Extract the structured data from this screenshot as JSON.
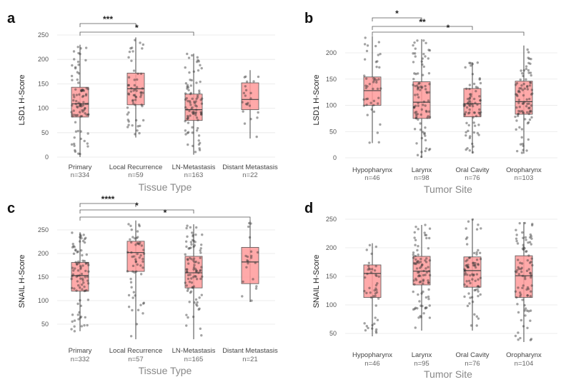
{
  "chart_data": [
    {
      "panel": "a",
      "type": "box",
      "ylabel": "LSD1 H-Score",
      "xlabel": "Tissue Type",
      "ylim": [
        0,
        255
      ],
      "yticks": [
        0,
        50,
        100,
        150,
        200,
        250
      ],
      "categories": [
        "Primary",
        "Local Recurrence",
        "LN-Metastasis",
        "Distant Metastasis"
      ],
      "n_labels": [
        "n=334",
        "n=59",
        "n=163",
        "n=22"
      ],
      "boxes": [
        {
          "whisk_low": 0,
          "q1": 82,
          "median": 109,
          "q3": 143,
          "whisk_high": 230
        },
        {
          "whisk_low": 40,
          "q1": 107,
          "median": 140,
          "q3": 172,
          "whisk_high": 245
        },
        {
          "whisk_low": 5,
          "q1": 75,
          "median": 97,
          "q3": 129,
          "whisk_high": 212
        },
        {
          "whisk_low": 38,
          "q1": 97,
          "median": 118,
          "q3": 152,
          "whisk_high": 178
        }
      ],
      "comparisons": [
        {
          "from": 0,
          "to": 1,
          "label": "***"
        },
        {
          "from": 0,
          "to": 2,
          "label": "*"
        }
      ]
    },
    {
      "panel": "b",
      "type": "box",
      "ylabel": "LSD1 H-Score",
      "xlabel": "Tumor Site",
      "ylim": [
        0,
        230
      ],
      "yticks": [
        0,
        50,
        100,
        150,
        200
      ],
      "categories": [
        "Hypopharynx",
        "Larynx",
        "Oral Cavity",
        "Oropharynx"
      ],
      "n_labels": [
        "n=46",
        "n=98",
        "n=76",
        "n=103"
      ],
      "boxes": [
        {
          "whisk_low": 28,
          "q1": 100,
          "median": 128,
          "q3": 154,
          "whisk_high": 232
        },
        {
          "whisk_low": 0,
          "q1": 75,
          "median": 106,
          "q3": 145,
          "whisk_high": 226
        },
        {
          "whisk_low": 8,
          "q1": 78,
          "median": 103,
          "q3": 132,
          "whisk_high": 182
        },
        {
          "whisk_low": 8,
          "q1": 83,
          "median": 107,
          "q3": 146,
          "whisk_high": 214
        }
      ],
      "comparisons": [
        {
          "from": 0,
          "to": 1,
          "label": "*"
        },
        {
          "from": 0,
          "to": 2,
          "label": "**"
        },
        {
          "from": 0,
          "to": 3,
          "label": "*"
        }
      ]
    },
    {
      "panel": "c",
      "type": "box",
      "ylabel": "SNAIL H-Score",
      "xlabel": "Tissue Type",
      "ylim": [
        20,
        285
      ],
      "yticks": [
        50,
        100,
        150,
        200,
        250
      ],
      "categories": [
        "Primary",
        "Local Recurrence",
        "LN-Metastasis",
        "Distant Metastasis"
      ],
      "n_labels": [
        "n=332",
        "n=57",
        "n=165",
        "n=21"
      ],
      "boxes": [
        {
          "whisk_low": 35,
          "q1": 120,
          "median": 153,
          "q3": 181,
          "whisk_high": 245
        },
        {
          "whisk_low": 18,
          "q1": 162,
          "median": 202,
          "q3": 226,
          "whisk_high": 270
        },
        {
          "whisk_low": 18,
          "q1": 127,
          "median": 159,
          "q3": 194,
          "whisk_high": 262
        },
        {
          "whisk_low": 97,
          "q1": 136,
          "median": 182,
          "q3": 213,
          "whisk_high": 270
        }
      ],
      "comparisons": [
        {
          "from": 0,
          "to": 1,
          "label": "****"
        },
        {
          "from": 0,
          "to": 2,
          "label": "*"
        },
        {
          "from": 0,
          "to": 3,
          "label": "*"
        }
      ]
    },
    {
      "panel": "d",
      "type": "box",
      "ylabel": "SNAIL H-Score",
      "xlabel": "Tumor Site",
      "ylim": [
        32,
        255
      ],
      "yticks": [
        50,
        100,
        150,
        200,
        250
      ],
      "categories": [
        "Hypopharynx",
        "Larynx",
        "Oral Cavity",
        "Oropharynx"
      ],
      "n_labels": [
        "n=46",
        "n=95",
        "n=76",
        "n=104"
      ],
      "boxes": [
        {
          "whisk_low": 45,
          "q1": 113,
          "median": 155,
          "q3": 170,
          "whisk_high": 208
        },
        {
          "whisk_low": 55,
          "q1": 135,
          "median": 159,
          "q3": 185,
          "whisk_high": 240
        },
        {
          "whisk_low": 55,
          "q1": 131,
          "median": 160,
          "q3": 184,
          "whisk_high": 250
        },
        {
          "whisk_low": 35,
          "q1": 113,
          "median": 151,
          "q3": 186,
          "whisk_high": 245
        }
      ],
      "comparisons": []
    }
  ]
}
